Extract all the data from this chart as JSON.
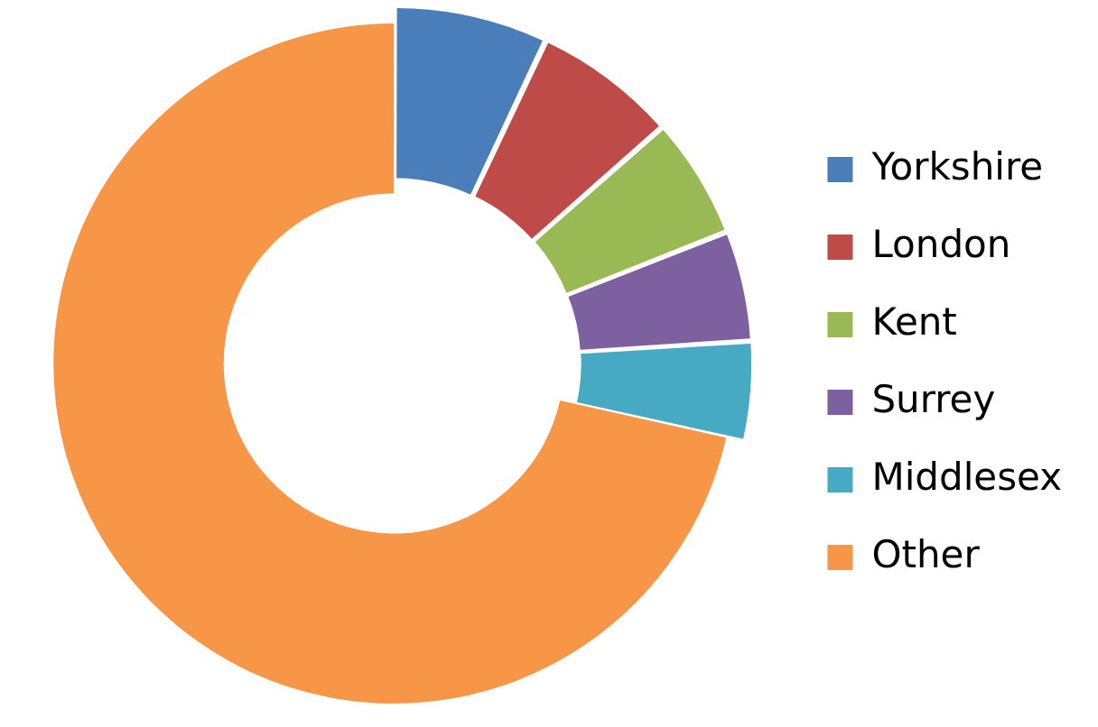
{
  "chart_data": {
    "type": "donut",
    "categories": [
      "Yorkshire",
      "London",
      "Kent",
      "Surrey",
      "Middlesex",
      "Other"
    ],
    "values": [
      7,
      6.5,
      5.5,
      5,
      4.5,
      71.5
    ],
    "colors": [
      "#4a7ebb",
      "#be4b48",
      "#98b954",
      "#7d60a0",
      "#46aac5",
      "#f79646"
    ],
    "legend": "right"
  }
}
